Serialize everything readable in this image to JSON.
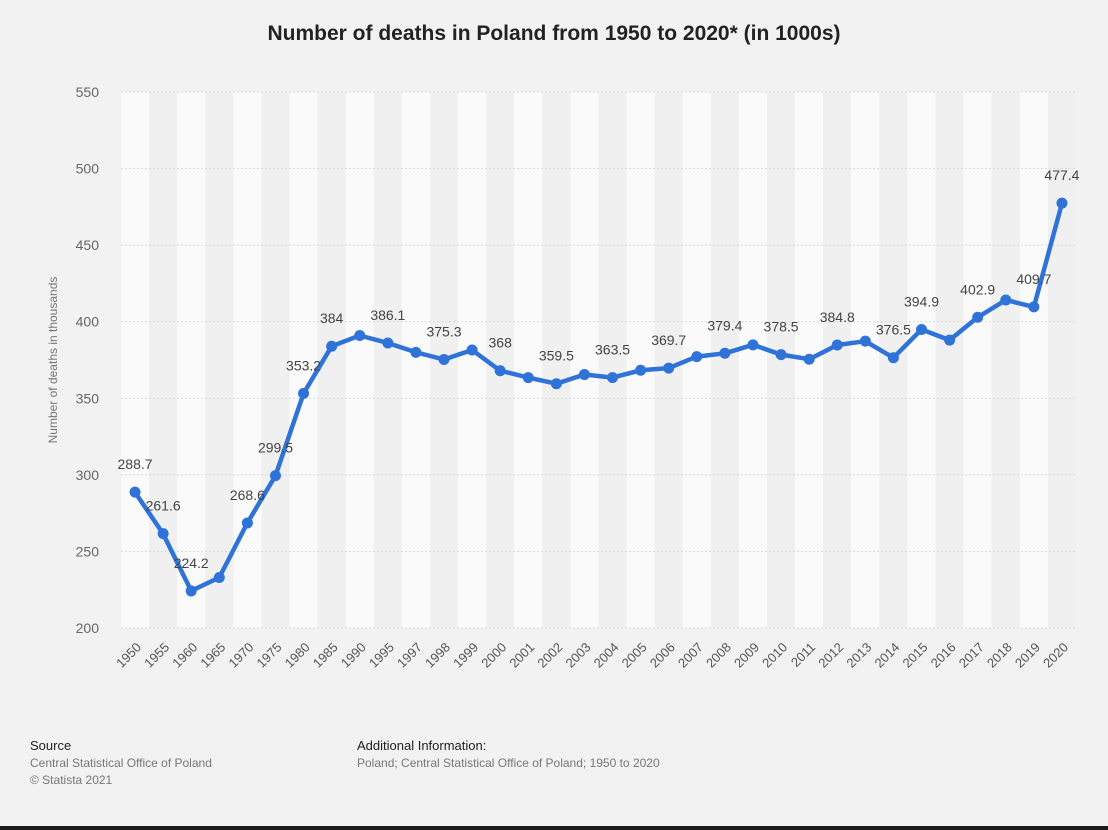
{
  "chart_data": {
    "type": "line",
    "title": "Number of deaths in Poland from 1950 to 2020* (in 1000s)",
    "xlabel": "",
    "ylabel": "Number of deaths in thousands",
    "ylim": [
      200,
      550
    ],
    "yticks": [
      200,
      250,
      300,
      350,
      400,
      450,
      500,
      550
    ],
    "grid": true,
    "categories": [
      "1950",
      "1955",
      "1960",
      "1965",
      "1970",
      "1975",
      "1980",
      "1985",
      "1990",
      "1995",
      "1997",
      "1998",
      "1999",
      "2000",
      "2001",
      "2002",
      "2003",
      "2004",
      "2005",
      "2006",
      "2007",
      "2008",
      "2009",
      "2010",
      "2011",
      "2012",
      "2013",
      "2014",
      "2015",
      "2016",
      "2017",
      "2018",
      "2019",
      "2020"
    ],
    "series": [
      {
        "values": [
          288.7,
          261.6,
          224.2,
          233.0,
          268.6,
          299.5,
          353.2,
          384,
          391.0,
          386.1,
          380.0,
          375.3,
          381.5,
          368,
          363.5,
          359.5,
          365.5,
          363.5,
          368.3,
          369.7,
          377.2,
          379.4,
          384.9,
          378.5,
          375.5,
          384.8,
          387.3,
          376.5,
          394.9,
          388.0,
          402.9,
          414.2,
          409.7,
          477.4
        ],
        "labels": [
          "288.7",
          "261.6",
          "224.2",
          "",
          "268.6",
          "299.5",
          "353.2",
          "384",
          "",
          "386.1",
          "",
          "375.3",
          "",
          "368",
          "",
          "359.5",
          "",
          "363.5",
          "",
          "369.7",
          "",
          "379.4",
          "",
          "378.5",
          "",
          "384.8",
          "",
          "376.5",
          "394.9",
          "",
          "402.9",
          "",
          "409.7",
          "477.4"
        ]
      }
    ],
    "color": "#2f73d8"
  },
  "footer": {
    "source_heading": "Source",
    "source_lines": [
      "Central Statistical Office of Poland",
      "© Statista 2021"
    ],
    "info_heading": "Additional Information:",
    "info_line": "Poland; Central Statistical Office of Poland; 1950 to 2020"
  }
}
